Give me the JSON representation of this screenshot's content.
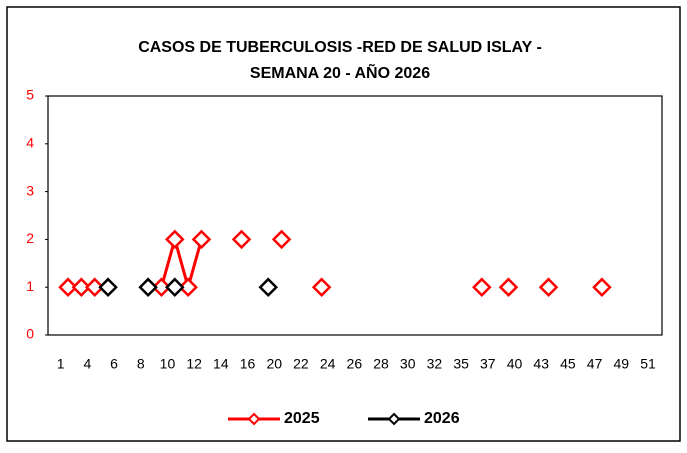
{
  "chart_data": {
    "type": "line",
    "title": [
      "CASOS DE TUBERCULOSIS -RED DE SALUD ISLAY -",
      "SEMANA 20 -  AÑO 2026"
    ],
    "categories": [
      "1",
      null,
      "4",
      null,
      "6",
      null,
      "8",
      null,
      "10",
      null,
      "12",
      null,
      "14",
      null,
      "16",
      null,
      "20",
      null,
      "22",
      null,
      "24",
      null,
      "26",
      null,
      "28",
      null,
      "30",
      null,
      "32",
      null,
      "35",
      null,
      "37",
      null,
      "40",
      null,
      "43",
      null,
      "45",
      null,
      "47",
      null,
      "49",
      null,
      "51",
      null
    ],
    "series": [
      {
        "name": "2025",
        "color": "#ff0000",
        "values": [
          null,
          1,
          1,
          1,
          null,
          null,
          null,
          null,
          1,
          2,
          1,
          2,
          null,
          null,
          2,
          null,
          null,
          2,
          null,
          null,
          1,
          null,
          null,
          null,
          null,
          null,
          null,
          null,
          null,
          null,
          null,
          null,
          1,
          null,
          1,
          null,
          null,
          1,
          null,
          null,
          null,
          1,
          null,
          null,
          null,
          null
        ]
      },
      {
        "name": "2026",
        "color": "#000000",
        "values": [
          null,
          null,
          null,
          null,
          1,
          null,
          null,
          1,
          null,
          1,
          null,
          null,
          null,
          null,
          null,
          null,
          1,
          null,
          null,
          null,
          null,
          null,
          null,
          null,
          null,
          null,
          null,
          null,
          null,
          null,
          null,
          null,
          null,
          null,
          null,
          null,
          null,
          null,
          null,
          null,
          null,
          null,
          null,
          null,
          null,
          null
        ]
      }
    ],
    "ylim": [
      0,
      5
    ],
    "yticks": [
      0,
      1,
      2,
      3,
      4,
      5
    ],
    "ytick_color": "#ff0000"
  }
}
